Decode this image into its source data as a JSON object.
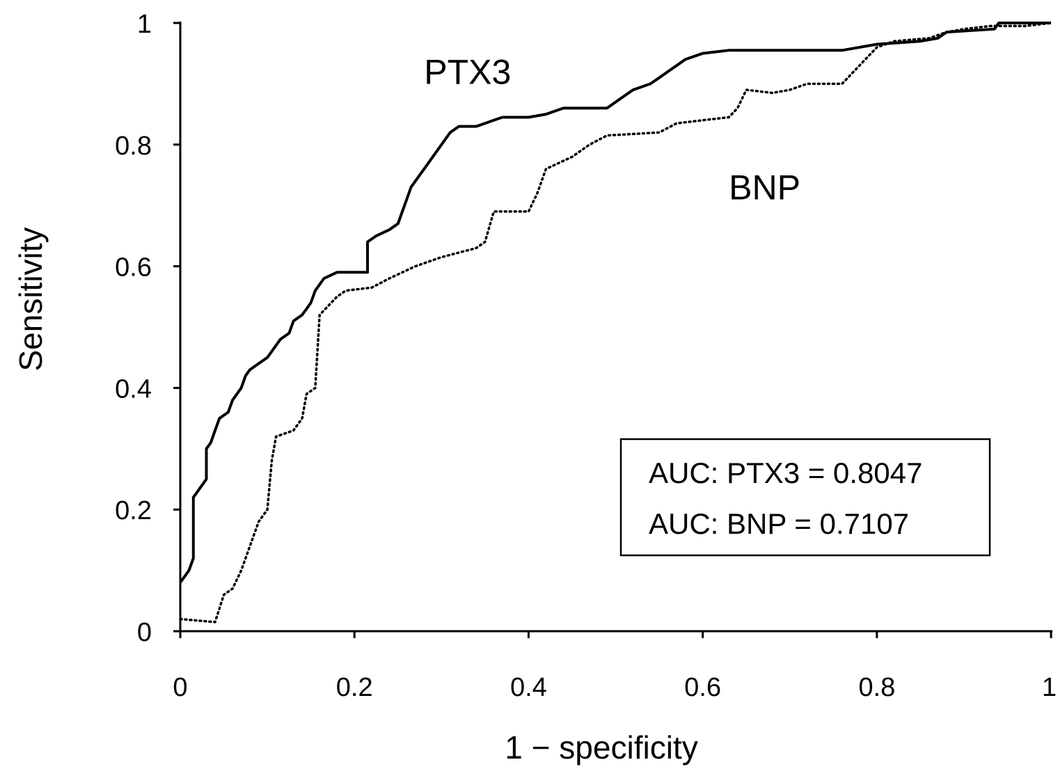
{
  "chart_data": {
    "type": "line",
    "xlabel": "1 − specificity",
    "ylabel": "Sensitivity",
    "xlim": [
      0,
      1
    ],
    "ylim": [
      0,
      1
    ],
    "x_ticks": [
      0,
      0.2,
      0.4,
      0.6,
      0.8,
      1
    ],
    "x_tick_labels": [
      "0",
      "0.2",
      "0.4",
      "0.6",
      "0.8",
      "1"
    ],
    "y_ticks": [
      0,
      0.2,
      0.4,
      0.6,
      0.8,
      1
    ],
    "y_tick_labels": [
      "0",
      "0.2",
      "0.4",
      "0.6",
      "0.8",
      "1"
    ],
    "grid": false,
    "series": [
      {
        "name": "PTX3",
        "line_style": "solid",
        "color": "#000000",
        "points": [
          [
            0.0,
            0.08
          ],
          [
            0.01,
            0.1
          ],
          [
            0.015,
            0.12
          ],
          [
            0.015,
            0.22
          ],
          [
            0.02,
            0.23
          ],
          [
            0.025,
            0.24
          ],
          [
            0.03,
            0.25
          ],
          [
            0.03,
            0.3
          ],
          [
            0.035,
            0.31
          ],
          [
            0.04,
            0.33
          ],
          [
            0.045,
            0.35
          ],
          [
            0.055,
            0.36
          ],
          [
            0.06,
            0.38
          ],
          [
            0.07,
            0.4
          ],
          [
            0.075,
            0.42
          ],
          [
            0.08,
            0.43
          ],
          [
            0.09,
            0.44
          ],
          [
            0.1,
            0.45
          ],
          [
            0.105,
            0.46
          ],
          [
            0.11,
            0.47
          ],
          [
            0.115,
            0.48
          ],
          [
            0.125,
            0.49
          ],
          [
            0.13,
            0.51
          ],
          [
            0.14,
            0.52
          ],
          [
            0.145,
            0.53
          ],
          [
            0.15,
            0.54
          ],
          [
            0.155,
            0.56
          ],
          [
            0.165,
            0.58
          ],
          [
            0.18,
            0.59
          ],
          [
            0.215,
            0.59
          ],
          [
            0.215,
            0.64
          ],
          [
            0.225,
            0.65
          ],
          [
            0.24,
            0.66
          ],
          [
            0.25,
            0.67
          ],
          [
            0.255,
            0.69
          ],
          [
            0.26,
            0.71
          ],
          [
            0.265,
            0.73
          ],
          [
            0.27,
            0.74
          ],
          [
            0.275,
            0.75
          ],
          [
            0.28,
            0.76
          ],
          [
            0.29,
            0.78
          ],
          [
            0.3,
            0.8
          ],
          [
            0.31,
            0.82
          ],
          [
            0.32,
            0.83
          ],
          [
            0.34,
            0.83
          ],
          [
            0.36,
            0.84
          ],
          [
            0.37,
            0.845
          ],
          [
            0.4,
            0.845
          ],
          [
            0.42,
            0.85
          ],
          [
            0.44,
            0.86
          ],
          [
            0.49,
            0.86
          ],
          [
            0.5,
            0.87
          ],
          [
            0.52,
            0.89
          ],
          [
            0.54,
            0.9
          ],
          [
            0.55,
            0.91
          ],
          [
            0.56,
            0.92
          ],
          [
            0.57,
            0.93
          ],
          [
            0.58,
            0.94
          ],
          [
            0.6,
            0.95
          ],
          [
            0.63,
            0.955
          ],
          [
            0.76,
            0.955
          ],
          [
            0.8,
            0.965
          ],
          [
            0.85,
            0.97
          ],
          [
            0.87,
            0.975
          ],
          [
            0.88,
            0.985
          ],
          [
            0.935,
            0.99
          ],
          [
            0.94,
            1.0
          ],
          [
            1.0,
            1.0
          ]
        ]
      },
      {
        "name": "BNP",
        "line_style": "dotted",
        "color": "#000000",
        "points": [
          [
            0.0,
            0.02
          ],
          [
            0.04,
            0.015
          ],
          [
            0.05,
            0.06
          ],
          [
            0.06,
            0.07
          ],
          [
            0.07,
            0.1
          ],
          [
            0.08,
            0.14
          ],
          [
            0.09,
            0.18
          ],
          [
            0.1,
            0.2
          ],
          [
            0.105,
            0.28
          ],
          [
            0.11,
            0.32
          ],
          [
            0.13,
            0.33
          ],
          [
            0.14,
            0.35
          ],
          [
            0.145,
            0.39
          ],
          [
            0.155,
            0.4
          ],
          [
            0.16,
            0.52
          ],
          [
            0.18,
            0.55
          ],
          [
            0.19,
            0.56
          ],
          [
            0.22,
            0.565
          ],
          [
            0.24,
            0.58
          ],
          [
            0.27,
            0.6
          ],
          [
            0.3,
            0.615
          ],
          [
            0.34,
            0.63
          ],
          [
            0.35,
            0.64
          ],
          [
            0.36,
            0.69
          ],
          [
            0.4,
            0.69
          ],
          [
            0.41,
            0.72
          ],
          [
            0.42,
            0.76
          ],
          [
            0.45,
            0.78
          ],
          [
            0.47,
            0.8
          ],
          [
            0.49,
            0.815
          ],
          [
            0.55,
            0.82
          ],
          [
            0.57,
            0.835
          ],
          [
            0.6,
            0.84
          ],
          [
            0.63,
            0.845
          ],
          [
            0.64,
            0.86
          ],
          [
            0.65,
            0.89
          ],
          [
            0.68,
            0.885
          ],
          [
            0.7,
            0.89
          ],
          [
            0.72,
            0.9
          ],
          [
            0.76,
            0.9
          ],
          [
            0.78,
            0.93
          ],
          [
            0.8,
            0.96
          ],
          [
            0.82,
            0.97
          ],
          [
            0.86,
            0.975
          ],
          [
            0.88,
            0.985
          ],
          [
            0.9,
            0.99
          ],
          [
            0.93,
            0.995
          ],
          [
            0.97,
            0.995
          ],
          [
            1.0,
            1.0
          ]
        ]
      }
    ],
    "series_labels": [
      {
        "text": "PTX3",
        "x": 0.28,
        "y": 0.9
      },
      {
        "text": "BNP",
        "x": 0.63,
        "y": 0.71
      }
    ],
    "annotation_box": {
      "lines": [
        "AUC: PTX3 = 0.8047",
        "AUC: BNP = 0.7107"
      ]
    }
  }
}
